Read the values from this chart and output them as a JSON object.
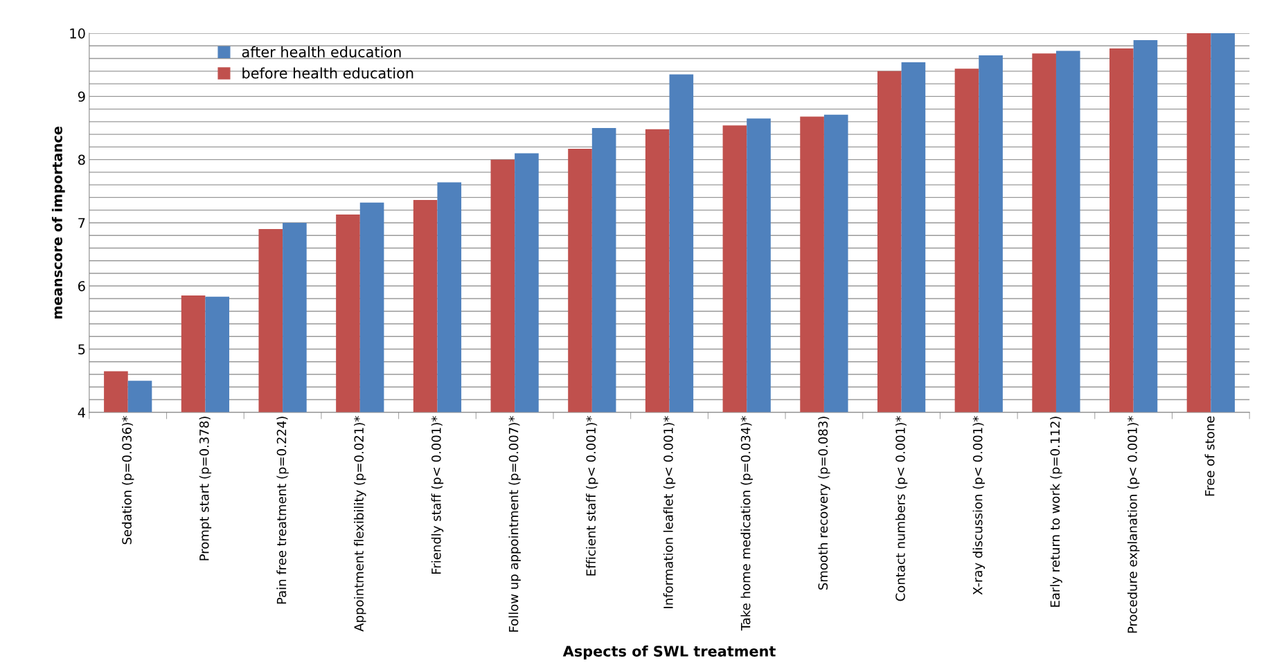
{
  "chart_data": {
    "type": "bar",
    "xlabel": "Aspects of SWL treatment",
    "ylabel": "meanscore of importance",
    "categories": [
      "Sedation (p=0.036)*",
      "Prompt start (p=0.378)",
      "Pain free treatment (p=0.224)",
      "Appointment flexibility (p=0.021)*",
      "Friendly staff (p< 0.001)*",
      "Follow up appointment (p=0.007)*",
      "Efficient staff (p< 0.001)*",
      "Information leaflet (p< 0.001)*",
      "Take home medication (p=0.034)*",
      "Smooth recovery (p=0.083)",
      "Contact numbers (p< 0.001)*",
      "X-ray discussion (p< 0.001)*",
      "Early return to work (p=0.112)",
      "Procedure explanation (p< 0.001)*",
      "Free of stone"
    ],
    "series": [
      {
        "name": "before health education",
        "color": "#c0504d",
        "values": [
          4.65,
          5.85,
          6.9,
          7.13,
          7.36,
          8.0,
          8.17,
          8.48,
          8.54,
          8.68,
          9.4,
          9.44,
          9.68,
          9.76,
          10
        ]
      },
      {
        "name": "after health education",
        "color": "#4f81bd",
        "values": [
          4.5,
          5.83,
          7.0,
          7.32,
          7.64,
          8.1,
          8.5,
          9.35,
          8.65,
          8.71,
          9.54,
          9.65,
          9.72,
          9.89,
          10
        ]
      }
    ],
    "ylim": [
      4,
      10
    ],
    "yticks": [
      4,
      {
        "value": 4.2,
        "label": null
      },
      {
        "value": 4.4,
        "label": null
      },
      {
        "value": 4.6,
        "label": null
      },
      {
        "value": 4.8,
        "label": null
      },
      5,
      {
        "value": 5.2,
        "label": null
      },
      {
        "value": 5.4,
        "label": null
      },
      {
        "value": 5.6,
        "label": null
      },
      {
        "value": 5.8,
        "label": null
      },
      6,
      {
        "value": 6.2,
        "label": null
      },
      {
        "value": 6.4,
        "label": null
      },
      {
        "value": 6.6,
        "label": null
      },
      {
        "value": 6.8,
        "label": null
      },
      7,
      {
        "value": 7.2,
        "label": null
      },
      {
        "value": 7.4,
        "label": null
      },
      {
        "value": 7.6,
        "label": null
      },
      {
        "value": 7.8,
        "label": null
      },
      8,
      {
        "value": 8.2,
        "label": null
      },
      {
        "value": 8.4,
        "label": null
      },
      {
        "value": 8.6,
        "label": null
      },
      {
        "value": 8.8,
        "label": null
      },
      9,
      {
        "value": 9.2,
        "label": null
      },
      {
        "value": 9.4,
        "label": null
      },
      {
        "value": 9.6,
        "label": null
      },
      {
        "value": 9.8,
        "label": null
      },
      10
    ],
    "grid": "y",
    "legend": "top left"
  }
}
